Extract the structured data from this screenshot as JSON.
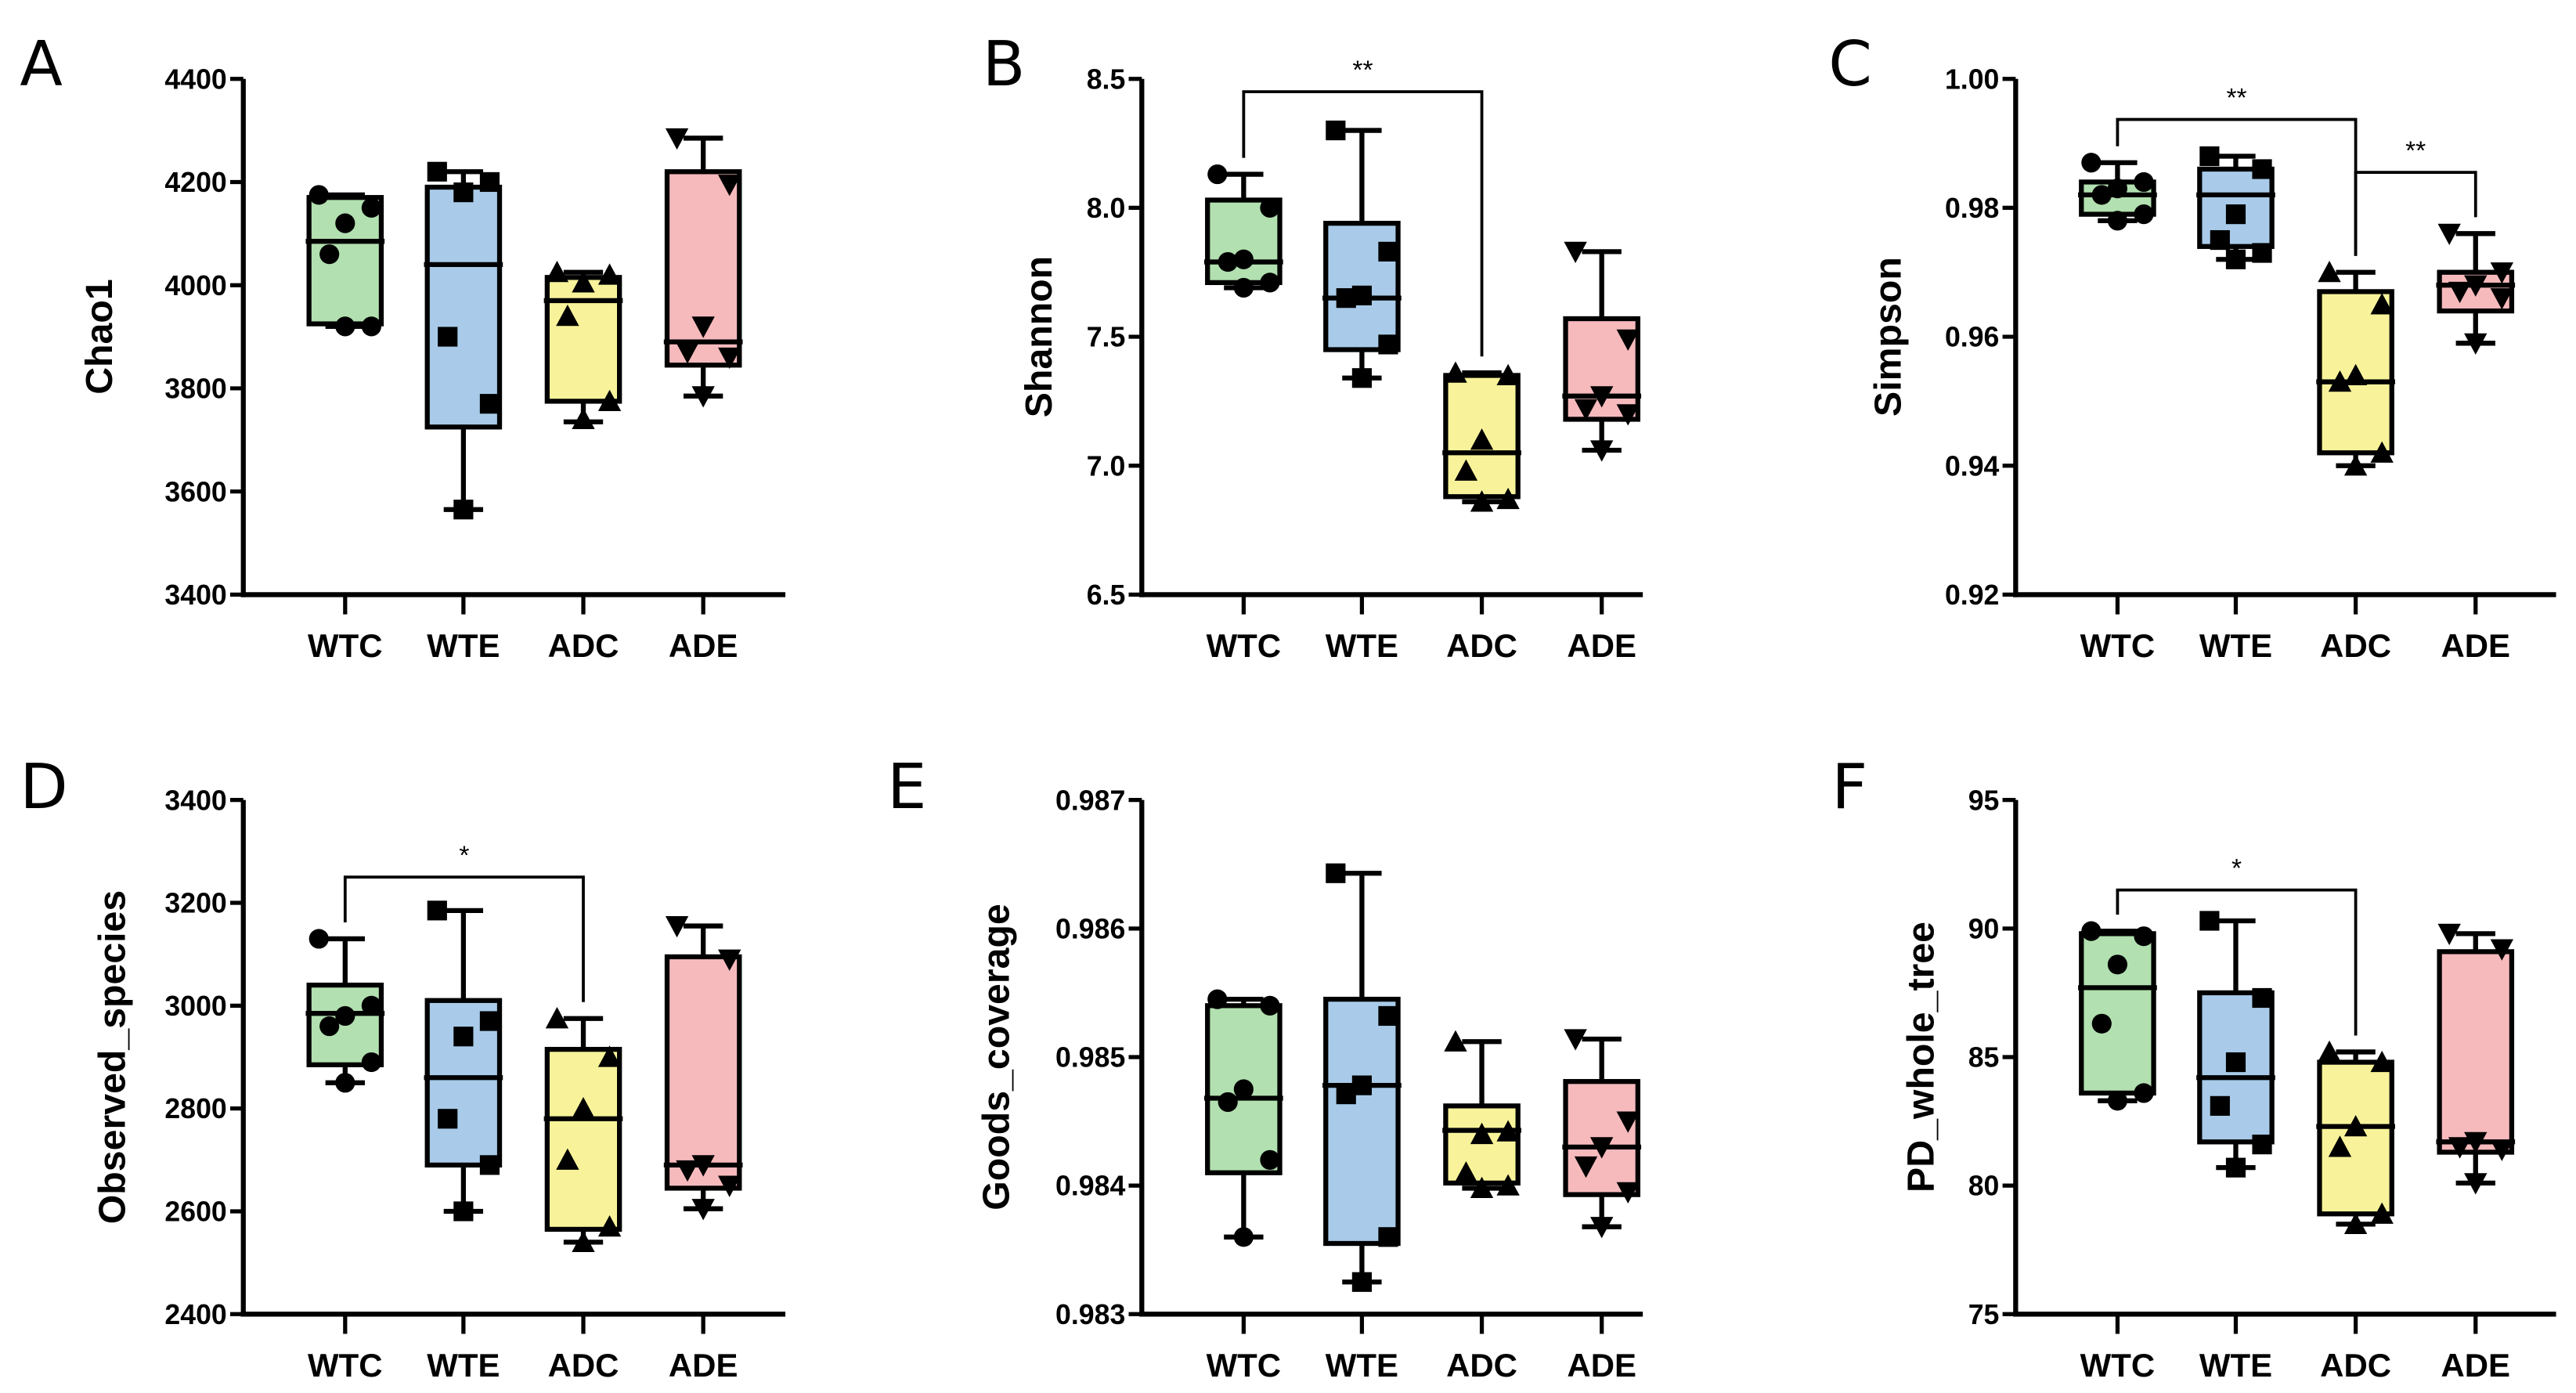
{
  "colors": {
    "WTC": "#b2e0b0",
    "WTE": "#a9cbe9",
    "ADC": "#f8f39a",
    "ADE": "#f6babd"
  },
  "markers": {
    "WTC": "circle",
    "WTE": "square",
    "ADC": "triangle-up",
    "ADE": "triangle-down"
  },
  "chart_data": [
    {
      "type": "box",
      "panel": "A",
      "ylabel": "Chao1",
      "categories": [
        "WTC",
        "WTE",
        "ADC",
        "ADE"
      ],
      "ylim": [
        3400,
        4400
      ],
      "yticks": [
        "3400",
        "3600",
        "3800",
        "4000",
        "4200",
        "4400"
      ],
      "boxes": [
        {
          "min": 3920,
          "q1": 3925,
          "median": 4085,
          "q3": 4170,
          "max": 4175,
          "points": [
            4175,
            4150,
            4120,
            4060,
            3920,
            3920
          ]
        },
        {
          "min": 3565,
          "q1": 3725,
          "median": 4040,
          "q3": 4190,
          "max": 4220,
          "points": [
            4220,
            4200,
            4180,
            3900,
            3770,
            3565
          ]
        },
        {
          "min": 3735,
          "q1": 3775,
          "median": 3970,
          "q3": 4015,
          "max": 4025,
          "points": [
            4025,
            4020,
            4005,
            3940,
            3775,
            3740
          ]
        },
        {
          "min": 3785,
          "q1": 3845,
          "median": 3890,
          "q3": 4220,
          "max": 4285,
          "points": [
            4285,
            4195,
            3920,
            3870,
            3860,
            3785
          ]
        }
      ],
      "significance": []
    },
    {
      "type": "box",
      "panel": "B",
      "ylabel": "Shannon",
      "categories": [
        "WTC",
        "WTE",
        "ADC",
        "ADE"
      ],
      "ylim": [
        6.5,
        8.5
      ],
      "yticks": [
        "6.5",
        "7.0",
        "7.5",
        "8.0",
        "8.5"
      ],
      "boxes": [
        {
          "min": 7.69,
          "q1": 7.71,
          "median": 7.79,
          "q3": 8.03,
          "max": 8.13,
          "points": [
            8.13,
            8.0,
            7.8,
            7.79,
            7.71,
            7.69
          ]
        },
        {
          "min": 7.34,
          "q1": 7.45,
          "median": 7.65,
          "q3": 7.94,
          "max": 8.3,
          "points": [
            8.3,
            7.83,
            7.66,
            7.65,
            7.47,
            7.34
          ]
        },
        {
          "min": 6.86,
          "q1": 6.88,
          "median": 7.05,
          "q3": 7.35,
          "max": 7.36,
          "points": [
            7.36,
            7.35,
            7.1,
            6.98,
            6.87,
            6.86
          ]
        },
        {
          "min": 7.06,
          "q1": 7.18,
          "median": 7.27,
          "q3": 7.57,
          "max": 7.83,
          "points": [
            7.83,
            7.49,
            7.27,
            7.22,
            7.2,
            7.06
          ]
        }
      ],
      "significance": [
        {
          "from": "WTC",
          "to": "ADC",
          "label": "**",
          "level": 8.45
        }
      ]
    },
    {
      "type": "box",
      "panel": "C",
      "ylabel": "Simpson",
      "categories": [
        "WTC",
        "WTE",
        "ADC",
        "ADE"
      ],
      "ylim": [
        0.92,
        1.0
      ],
      "yticks": [
        "0.92",
        "0.94",
        "0.96",
        "0.98",
        "1.00"
      ],
      "boxes": [
        {
          "min": 0.978,
          "q1": 0.979,
          "median": 0.982,
          "q3": 0.984,
          "max": 0.987,
          "points": [
            0.987,
            0.984,
            0.983,
            0.982,
            0.979,
            0.978
          ]
        },
        {
          "min": 0.972,
          "q1": 0.974,
          "median": 0.982,
          "q3": 0.986,
          "max": 0.988,
          "points": [
            0.988,
            0.986,
            0.979,
            0.975,
            0.973,
            0.972
          ]
        },
        {
          "min": 0.94,
          "q1": 0.942,
          "median": 0.953,
          "q3": 0.967,
          "max": 0.97,
          "points": [
            0.97,
            0.965,
            0.954,
            0.953,
            0.942,
            0.94
          ]
        },
        {
          "min": 0.959,
          "q1": 0.964,
          "median": 0.968,
          "q3": 0.97,
          "max": 0.976,
          "points": [
            0.976,
            0.97,
            0.968,
            0.967,
            0.966,
            0.959
          ]
        }
      ],
      "significance": [
        {
          "from": "WTC",
          "to": "ADC",
          "label": "**",
          "level": 0.9937
        },
        {
          "from": "ADC",
          "to": "ADE",
          "label": "**",
          "level": 0.9855
        }
      ]
    },
    {
      "type": "box",
      "panel": "D",
      "ylabel": "Observed_species",
      "categories": [
        "WTC",
        "WTE",
        "ADC",
        "ADE"
      ],
      "ylim": [
        2400,
        3400
      ],
      "yticks": [
        "2400",
        "2600",
        "2800",
        "3000",
        "3200",
        "3400"
      ],
      "boxes": [
        {
          "min": 2850,
          "q1": 2885,
          "median": 2985,
          "q3": 3040,
          "max": 3130,
          "points": [
            3130,
            3000,
            2980,
            2960,
            2890,
            2850
          ]
        },
        {
          "min": 2600,
          "q1": 2690,
          "median": 2860,
          "q3": 3010,
          "max": 3185,
          "points": [
            3185,
            2970,
            2940,
            2780,
            2690,
            2600
          ]
        },
        {
          "min": 2540,
          "q1": 2565,
          "median": 2780,
          "q3": 2915,
          "max": 2975,
          "points": [
            2975,
            2900,
            2800,
            2700,
            2570,
            2540
          ]
        },
        {
          "min": 2605,
          "q1": 2645,
          "median": 2690,
          "q3": 3095,
          "max": 3155,
          "points": [
            3155,
            3090,
            2690,
            2680,
            2650,
            2605
          ]
        }
      ],
      "significance": [
        {
          "from": "WTC",
          "to": "ADC",
          "label": "*",
          "level": 3250
        }
      ]
    },
    {
      "type": "box",
      "panel": "E",
      "ylabel": "Goods_coverage",
      "categories": [
        "WTC",
        "WTE",
        "ADC",
        "ADE"
      ],
      "ylim": [
        0.983,
        0.987
      ],
      "yticks": [
        "0.983",
        "0.984",
        "0.985",
        "0.986",
        "0.987"
      ],
      "boxes": [
        {
          "min": 0.9836,
          "q1": 0.9841,
          "median": 0.98468,
          "q3": 0.9854,
          "max": 0.98545,
          "points": [
            0.98545,
            0.9854,
            0.98475,
            0.98465,
            0.9842,
            0.9836
          ]
        },
        {
          "min": 0.98325,
          "q1": 0.98355,
          "median": 0.98478,
          "q3": 0.98545,
          "max": 0.98643,
          "points": [
            0.98643,
            0.98532,
            0.98478,
            0.98471,
            0.9836,
            0.98325
          ]
        },
        {
          "min": 0.98398,
          "q1": 0.98402,
          "median": 0.98443,
          "q3": 0.98462,
          "max": 0.98512,
          "points": [
            0.98512,
            0.98442,
            0.9844,
            0.9841,
            0.984,
            0.98398
          ]
        },
        {
          "min": 0.98368,
          "q1": 0.98393,
          "median": 0.9843,
          "q3": 0.98481,
          "max": 0.98514,
          "points": [
            0.98514,
            0.9845,
            0.9843,
            0.98415,
            0.98395,
            0.98368
          ]
        }
      ],
      "significance": []
    },
    {
      "type": "box",
      "panel": "F",
      "ylabel": "PD_whole_tree",
      "categories": [
        "WTC",
        "WTE",
        "ADC",
        "ADE"
      ],
      "ylim": [
        75,
        95
      ],
      "yticks": [
        "75",
        "80",
        "85",
        "90",
        "95"
      ],
      "boxes": [
        {
          "min": 83.3,
          "q1": 83.6,
          "median": 87.7,
          "q3": 89.8,
          "max": 89.9,
          "points": [
            89.9,
            89.7,
            88.6,
            86.3,
            83.6,
            83.3
          ]
        },
        {
          "min": 80.7,
          "q1": 81.7,
          "median": 84.2,
          "q3": 87.5,
          "max": 90.3,
          "points": [
            90.3,
            87.3,
            84.8,
            83.1,
            81.6,
            80.7
          ]
        },
        {
          "min": 78.5,
          "q1": 78.9,
          "median": 82.3,
          "q3": 84.8,
          "max": 85.2,
          "points": [
            85.2,
            84.8,
            82.3,
            81.5,
            78.9,
            78.5
          ]
        },
        {
          "min": 80.1,
          "q1": 81.3,
          "median": 81.7,
          "q3": 89.1,
          "max": 89.8,
          "points": [
            89.8,
            89.2,
            81.7,
            81.5,
            81.4,
            80.1
          ]
        }
      ],
      "significance": [
        {
          "from": "WTC",
          "to": "ADC",
          "label": "*",
          "level": 91.5
        }
      ]
    }
  ]
}
